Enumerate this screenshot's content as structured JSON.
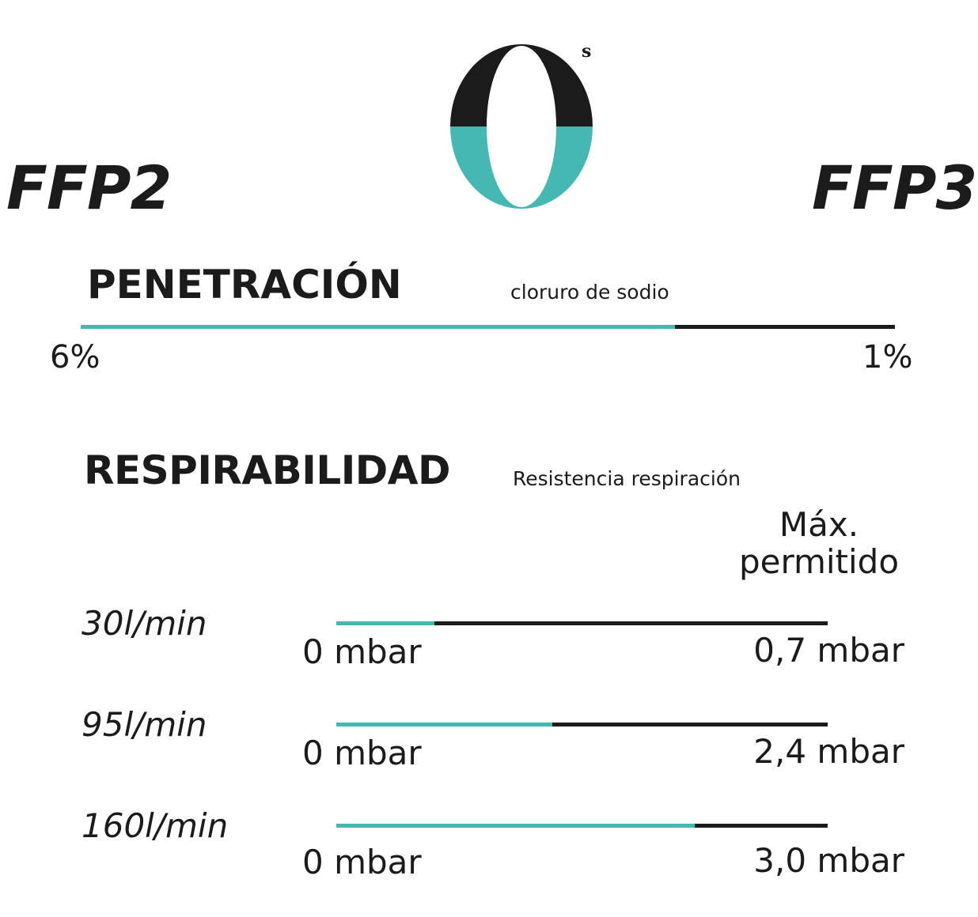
{
  "header": {
    "left_label": "FFP2",
    "right_label": "FFP3",
    "logo": {
      "glyph": "0",
      "superscript": "s",
      "icon": "os-logo",
      "top_color": "#1b1b1b",
      "bottom_color": "#46b8b3"
    }
  },
  "colors": {
    "accent": "#46b8b3",
    "dark": "#1b1b1b",
    "background": "#ffffff"
  },
  "penetration": {
    "title": "PENETRACIÓN",
    "subtitle": "cloruro de sodio",
    "min_label": "6%",
    "max_label": "1%",
    "fill_fraction": 0.73
  },
  "breathability": {
    "title": "RESPIRABILIDAD",
    "subtitle": "Resistencia respiración",
    "max_label": "Máx. permitido",
    "rows": [
      {
        "flow": "30l/min",
        "min_label": "0 mbar",
        "max_label": "0,7 mbar",
        "fill_fraction": 0.2
      },
      {
        "flow": "95l/min",
        "min_label": "0 mbar",
        "max_label": "2,4 mbar",
        "fill_fraction": 0.44
      },
      {
        "flow": "160l/min",
        "min_label": "0 mbar",
        "max_label": "3,0 mbar",
        "fill_fraction": 0.73
      }
    ]
  }
}
